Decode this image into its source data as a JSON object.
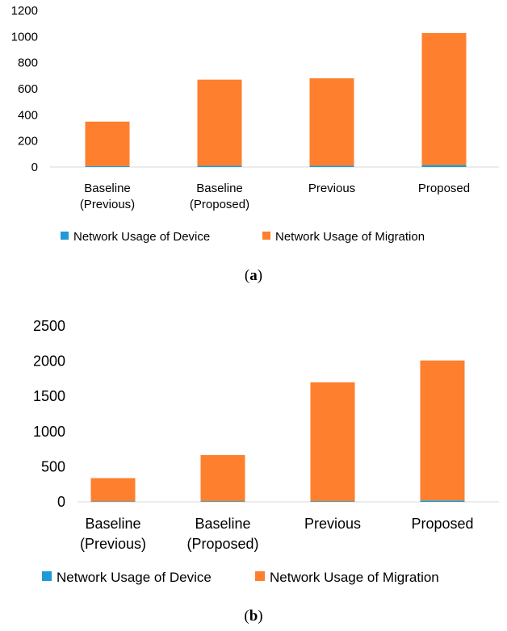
{
  "chart_data": [
    {
      "type": "bar",
      "stacked": true,
      "categories": [
        "Baseline\n(Previous)",
        "Baseline\n(Proposed)",
        "Previous",
        "Proposed"
      ],
      "series": [
        {
          "name": "Network Usage of Device",
          "color": "#1f9ad6",
          "values": [
            8,
            10,
            10,
            15
          ]
        },
        {
          "name": "Network Usage of Migration",
          "color": "#fe7f2d",
          "values": [
            340,
            660,
            670,
            1012
          ]
        }
      ],
      "ylim": [
        0,
        1200
      ],
      "yticks": [
        0,
        200,
        400,
        600,
        800,
        1000,
        1200
      ],
      "title": "",
      "xlabel": "",
      "ylabel": "",
      "legend": "bottom"
    },
    {
      "type": "bar",
      "stacked": true,
      "categories": [
        "Baseline\n(Previous)",
        "Baseline\n(Proposed)",
        "Previous",
        "Proposed"
      ],
      "series": [
        {
          "name": "Network Usage of Device",
          "color": "#1f9ad6",
          "values": [
            8,
            10,
            10,
            20
          ]
        },
        {
          "name": "Network Usage of Migration",
          "color": "#fe7f2d",
          "values": [
            330,
            655,
            1690,
            1990
          ]
        }
      ],
      "ylim": [
        0,
        2500
      ],
      "yticks": [
        0,
        500,
        1000,
        1500,
        2000,
        2500
      ],
      "title": "",
      "xlabel": "",
      "ylabel": "",
      "legend": "bottom"
    }
  ],
  "captions": {
    "a": {
      "open": "(",
      "letter": "a",
      "close": ")"
    },
    "b": {
      "open": "(",
      "letter": "b",
      "close": ")"
    }
  }
}
